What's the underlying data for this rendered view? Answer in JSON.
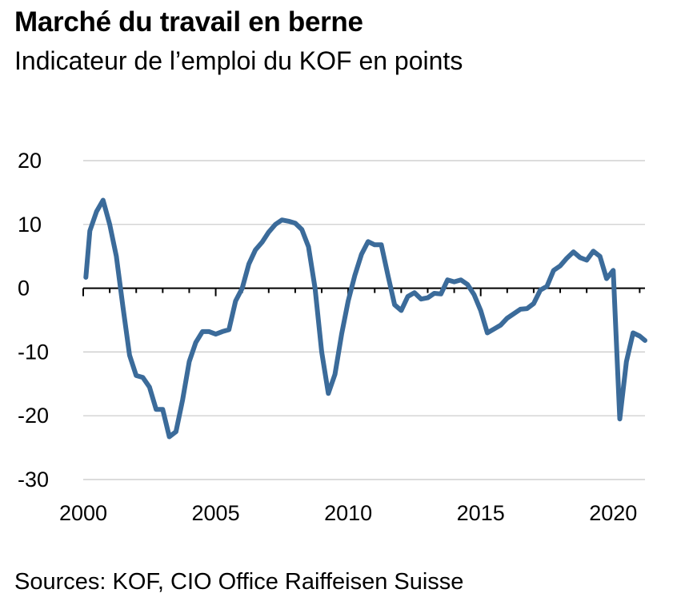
{
  "title": "Marché du travail en berne",
  "subtitle": "Indicateur de l’emploi du KOF en points",
  "source": "Sources: KOF, CIO Office Raiffeisen Suisse",
  "colors": {
    "line": "#3b6b9a",
    "grid": "#c8c8c8",
    "axis": "#000000"
  },
  "chart_data": {
    "type": "line",
    "title": "Marché du travail en berne",
    "subtitle": "Indicateur de l’emploi du KOF en points",
    "xlabel": "",
    "ylabel": "",
    "xlim": [
      2000,
      2021.2
    ],
    "ylim": [
      -30,
      20
    ],
    "y_ticks": [
      "20",
      "10",
      "0",
      "-10",
      "-20",
      "-30"
    ],
    "y_tick_values": [
      20,
      10,
      0,
      -10,
      -20,
      -30
    ],
    "x_ticks": [
      "2000",
      "2005",
      "2010",
      "2015",
      "2020"
    ],
    "x_tick_values": [
      2000,
      2005,
      2010,
      2015,
      2020
    ],
    "grid": true,
    "series": [
      {
        "x": [
          2000.1,
          2000.25,
          2000.5,
          2000.75,
          2001.0,
          2001.25,
          2001.5,
          2001.75,
          2002.0,
          2002.25,
          2002.5,
          2002.75,
          2003.0,
          2003.25,
          2003.5,
          2003.75,
          2004.0,
          2004.25,
          2004.5,
          2004.75,
          2005.0,
          2005.25,
          2005.5,
          2005.75,
          2006.0,
          2006.25,
          2006.5,
          2006.75,
          2007.0,
          2007.25,
          2007.5,
          2007.75,
          2008.0,
          2008.25,
          2008.5,
          2008.75,
          2009.0,
          2009.25,
          2009.5,
          2009.75,
          2010.0,
          2010.25,
          2010.5,
          2010.75,
          2011.0,
          2011.25,
          2011.5,
          2011.75,
          2012.0,
          2012.25,
          2012.5,
          2012.75,
          2013.0,
          2013.25,
          2013.5,
          2013.75,
          2014.0,
          2014.25,
          2014.5,
          2014.75,
          2015.0,
          2015.25,
          2015.5,
          2015.75,
          2016.0,
          2016.25,
          2016.5,
          2016.75,
          2017.0,
          2017.25,
          2017.5,
          2017.75,
          2018.0,
          2018.25,
          2018.5,
          2018.75,
          2019.0,
          2019.25,
          2019.5,
          2019.75,
          2020.0,
          2020.25,
          2020.5,
          2020.75,
          2021.0,
          2021.2
        ],
        "y": [
          1.7,
          9.0,
          12.0,
          13.8,
          10.0,
          5.0,
          -3.0,
          -10.5,
          -13.7,
          -14.0,
          -15.5,
          -19.0,
          -19.0,
          -23.3,
          -22.5,
          -17.5,
          -11.5,
          -8.5,
          -6.8,
          -6.8,
          -7.2,
          -6.8,
          -6.5,
          -2.0,
          0.0,
          3.8,
          6.0,
          7.2,
          8.8,
          10.0,
          10.7,
          10.5,
          10.2,
          9.2,
          6.5,
          0.0,
          -10.0,
          -16.5,
          -13.5,
          -7.2,
          -2.0,
          2.0,
          5.3,
          7.3,
          6.8,
          6.8,
          2.0,
          -2.6,
          -3.5,
          -1.3,
          -0.7,
          -1.7,
          -1.5,
          -0.8,
          -0.9,
          1.3,
          1.0,
          1.3,
          0.6,
          -1.0,
          -3.5,
          -7.0,
          -6.4,
          -5.8,
          -4.7,
          -4.0,
          -3.3,
          -3.2,
          -2.4,
          -0.3,
          0.3,
          2.8,
          3.5,
          4.7,
          5.7,
          4.8,
          4.4,
          5.8,
          5.0,
          1.5,
          2.8,
          -20.5,
          -11.5,
          -7.0,
          -7.5,
          -8.2
        ]
      }
    ]
  }
}
